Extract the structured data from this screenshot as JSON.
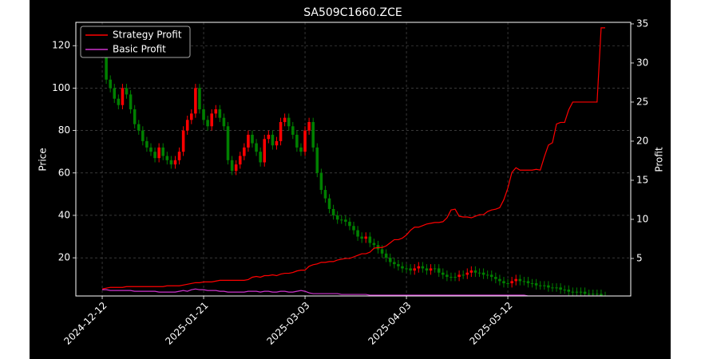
{
  "chart_data": {
    "type": "candlestick",
    "title": "SA509C1660.ZCE",
    "ylabel": "Price",
    "y2label": "Profit",
    "categories": [
      "2024-12-12",
      null,
      null,
      null,
      null,
      null,
      null,
      null,
      null,
      null,
      null,
      null,
      null,
      null,
      null,
      null,
      null,
      null,
      null,
      null,
      null,
      null,
      null,
      null,
      null,
      "2025-01-21",
      null,
      null,
      null,
      null,
      null,
      null,
      null,
      null,
      null,
      null,
      null,
      null,
      null,
      null,
      null,
      null,
      null,
      null,
      null,
      null,
      null,
      null,
      null,
      null,
      "2025-03-03",
      null,
      null,
      null,
      null,
      null,
      null,
      null,
      null,
      null,
      null,
      null,
      null,
      null,
      null,
      null,
      null,
      null,
      null,
      null,
      null,
      null,
      null,
      null,
      null,
      "2025-04-03",
      null,
      null,
      null,
      null,
      null,
      null,
      null,
      null,
      null,
      null,
      null,
      null,
      null,
      null,
      null,
      null,
      null,
      null,
      null,
      null,
      null,
      null,
      null,
      null,
      "2025-05-12",
      null,
      null,
      null,
      null,
      null,
      null,
      null,
      null,
      null,
      null,
      null,
      null,
      null,
      null,
      null,
      null,
      null,
      null,
      null,
      null,
      null,
      null,
      null,
      null
    ],
    "open": [
      125,
      120,
      104,
      100,
      95,
      92,
      100,
      97,
      90,
      83,
      80,
      75,
      72,
      70,
      67,
      72,
      68,
      66,
      64,
      66,
      70,
      80,
      85,
      88,
      100,
      90,
      85,
      82,
      88,
      90,
      86,
      82,
      66,
      61,
      64,
      68,
      72,
      78,
      74,
      70,
      65,
      76,
      78,
      73,
      75,
      84,
      86,
      82,
      78,
      72,
      70,
      80,
      84,
      72,
      60,
      52,
      48,
      43,
      40,
      38,
      38,
      37,
      35,
      33,
      30,
      29,
      30,
      27,
      26,
      24,
      22,
      20,
      18,
      17,
      16,
      15,
      15,
      14,
      15,
      16,
      15,
      14,
      15,
      15,
      13,
      12,
      11,
      11,
      11,
      12,
      12,
      13,
      14,
      13,
      13,
      12,
      12,
      11,
      10,
      9,
      8,
      8,
      9,
      10,
      9,
      9,
      8,
      8,
      7,
      7,
      7,
      6,
      6,
      6,
      5,
      5,
      4,
      4,
      4,
      4,
      3,
      3,
      3,
      3,
      2
    ],
    "high": [
      127,
      122,
      106,
      102,
      97,
      102,
      102,
      99,
      92,
      85,
      82,
      77,
      74,
      72,
      74,
      74,
      70,
      68,
      68,
      72,
      82,
      87,
      90,
      102,
      102,
      92,
      87,
      90,
      92,
      92,
      88,
      84,
      68,
      66,
      70,
      74,
      80,
      80,
      76,
      72,
      78,
      80,
      80,
      77,
      86,
      88,
      88,
      84,
      80,
      74,
      82,
      86,
      86,
      74,
      62,
      54,
      50,
      45,
      42,
      40,
      40,
      39,
      37,
      35,
      32,
      32,
      32,
      29,
      28,
      26,
      24,
      22,
      20,
      19,
      18,
      17,
      17,
      17,
      18,
      18,
      17,
      17,
      17,
      17,
      15,
      14,
      13,
      13,
      14,
      14,
      15,
      16,
      16,
      15,
      15,
      14,
      14,
      13,
      12,
      11,
      10,
      11,
      12,
      12,
      11,
      11,
      10,
      10,
      9,
      9,
      9,
      8,
      8,
      8,
      7,
      7,
      6,
      6,
      6,
      6,
      5,
      5,
      5,
      5,
      4
    ],
    "low": [
      118,
      102,
      98,
      93,
      90,
      90,
      95,
      88,
      81,
      78,
      73,
      70,
      68,
      65,
      65,
      66,
      64,
      62,
      62,
      64,
      68,
      78,
      83,
      86,
      88,
      83,
      80,
      80,
      86,
      84,
      80,
      64,
      59,
      59,
      62,
      66,
      70,
      72,
      68,
      63,
      63,
      74,
      71,
      71,
      73,
      82,
      80,
      76,
      70,
      68,
      68,
      78,
      70,
      58,
      50,
      46,
      41,
      38,
      36,
      36,
      35,
      33,
      31,
      28,
      27,
      27,
      25,
      24,
      22,
      20,
      18,
      16,
      15,
      14,
      13,
      13,
      12,
      12,
      13,
      13,
      12,
      12,
      13,
      11,
      10,
      9,
      9,
      9,
      9,
      10,
      10,
      11,
      11,
      11,
      10,
      10,
      9,
      8,
      7,
      6,
      6,
      6,
      7,
      7,
      7,
      6,
      6,
      5,
      5,
      5,
      4,
      4,
      4,
      3,
      3,
      2,
      2,
      2,
      2,
      1,
      1,
      1,
      1,
      0,
      0
    ],
    "close": [
      120,
      104,
      100,
      95,
      92,
      100,
      97,
      90,
      83,
      80,
      75,
      72,
      70,
      67,
      72,
      68,
      66,
      64,
      66,
      70,
      80,
      85,
      88,
      100,
      90,
      85,
      82,
      88,
      90,
      86,
      82,
      66,
      61,
      64,
      68,
      72,
      78,
      74,
      70,
      65,
      76,
      78,
      73,
      75,
      84,
      86,
      82,
      78,
      72,
      70,
      80,
      84,
      72,
      60,
      52,
      48,
      43,
      40,
      38,
      38,
      37,
      35,
      33,
      30,
      29,
      30,
      27,
      26,
      24,
      22,
      20,
      18,
      17,
      16,
      15,
      15,
      14,
      15,
      16,
      15,
      14,
      15,
      15,
      13,
      12,
      11,
      11,
      11,
      12,
      12,
      13,
      14,
      13,
      13,
      12,
      12,
      11,
      10,
      9,
      8,
      8,
      9,
      10,
      9,
      9,
      8,
      8,
      7,
      7,
      7,
      6,
      6,
      6,
      5,
      5,
      4,
      4,
      4,
      4,
      3,
      3,
      3,
      3,
      2,
      2
    ],
    "up_color": "#ff0000",
    "down_color": "#008000",
    "series": [
      {
        "name": "Strategy Profit",
        "color": "#ff0000",
        "axis": "y2",
        "values": [
          1.1,
          1.2,
          1.3,
          1.3,
          1.3,
          1.3,
          1.4,
          1.4,
          1.4,
          1.4,
          1.4,
          1.4,
          1.4,
          1.4,
          1.4,
          1.4,
          1.5,
          1.5,
          1.5,
          1.5,
          1.6,
          1.7,
          1.8,
          1.9,
          1.9,
          2.0,
          2.0,
          2.0,
          2.1,
          2.2,
          2.2,
          2.2,
          2.2,
          2.2,
          2.2,
          2.2,
          2.3,
          2.6,
          2.7,
          2.6,
          2.8,
          2.8,
          2.9,
          2.8,
          3.0,
          3.1,
          3.1,
          3.2,
          3.4,
          3.5,
          3.5,
          4.0,
          4.2,
          4.3,
          4.5,
          4.5,
          4.6,
          4.6,
          4.8,
          4.9,
          5.0,
          5.0,
          5.2,
          5.4,
          5.6,
          5.6,
          5.8,
          6.3,
          6.4,
          6.4,
          6.6,
          7.0,
          7.4,
          7.4,
          7.6,
          8.0,
          8.6,
          9.0,
          9.0,
          9.2,
          9.4,
          9.5,
          9.6,
          9.6,
          9.7,
          10.2,
          11.2,
          11.3,
          10.4,
          10.3,
          10.3,
          10.2,
          10.4,
          10.6,
          10.6,
          11.0,
          11.2,
          11.3,
          11.5,
          12.5,
          14.0,
          16.0,
          16.6,
          16.3,
          16.3,
          16.3,
          16.3,
          16.4,
          16.3,
          18.0,
          19.5,
          19.8,
          22.2,
          22.4,
          22.4,
          24.0,
          25.0,
          25.0,
          25.0,
          25.0,
          25.0,
          25.0,
          25.0,
          34.5,
          34.5
        ]
      },
      {
        "name": "Basic Profit",
        "color": "#cc33cc",
        "axis": "y2",
        "values": [
          1.0,
          1.0,
          0.9,
          0.9,
          0.9,
          0.9,
          0.9,
          0.9,
          0.8,
          0.8,
          0.8,
          0.8,
          0.8,
          0.8,
          0.7,
          0.7,
          0.7,
          0.7,
          0.7,
          0.8,
          0.9,
          0.8,
          1.0,
          1.1,
          1.0,
          1.0,
          0.9,
          0.9,
          0.9,
          0.8,
          0.8,
          0.7,
          0.7,
          0.7,
          0.7,
          0.7,
          0.8,
          0.8,
          0.8,
          0.7,
          0.8,
          0.8,
          0.7,
          0.7,
          0.8,
          0.8,
          0.7,
          0.7,
          0.8,
          0.9,
          0.8,
          0.6,
          0.5,
          0.5,
          0.5,
          0.5,
          0.5,
          0.5,
          0.5,
          0.4,
          0.4,
          0.4,
          0.4,
          0.4,
          0.4,
          0.4,
          0.3,
          0.3,
          0.3,
          0.3,
          0.3,
          0.3,
          0.3,
          0.3,
          0.3,
          0.3,
          0.3,
          0.3,
          0.3,
          0.3,
          0.3,
          0.3,
          0.3,
          0.3,
          0.3,
          0.3,
          0.3,
          0.3,
          0.3,
          0.3,
          0.3,
          0.3,
          0.3,
          0.3,
          0.3,
          0.3,
          0.3,
          0.3,
          0.3,
          0.3,
          0.3,
          0.3,
          0.3,
          0.3,
          0.3,
          0.2,
          0.2,
          0.2,
          0.2,
          0.2,
          0.2,
          0.2,
          0.2,
          0.2,
          0.2,
          0.2,
          0.2,
          0.2,
          0.2,
          0.2,
          0.2,
          0.2,
          0.2,
          0.2,
          0.1
        ]
      }
    ],
    "xlim": [
      -6.5,
      130.3
    ],
    "ylim": [
      2,
      131
    ],
    "yticks": [
      20,
      40,
      60,
      80,
      100,
      120
    ],
    "y2lim": [
      0.2,
      35.2
    ],
    "y2ticks": [
      5,
      10,
      15,
      20,
      25,
      30,
      35
    ],
    "grid": true,
    "legend": "upper left"
  }
}
